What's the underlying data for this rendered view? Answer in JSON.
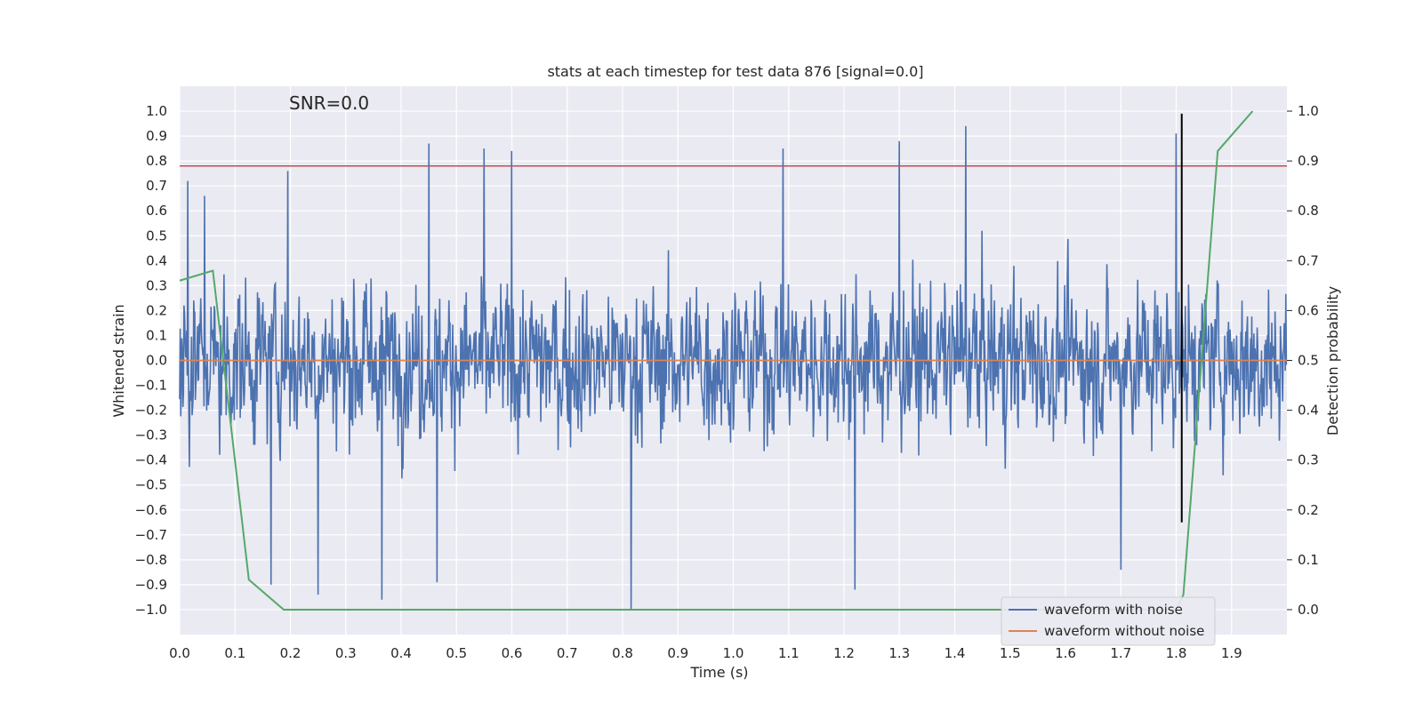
{
  "chart_data": {
    "type": "line",
    "title": "stats at each timestep for test data 876 [signal=0.0]",
    "xlabel": "Time (s)",
    "ylabel": "Whitened strain",
    "y2label": "Detection probability",
    "annotation": "SNR=0.0",
    "xlim": [
      0.0,
      2.0
    ],
    "ylim": [
      -1.1,
      1.1
    ],
    "y2lim": [
      -0.05,
      1.05
    ],
    "grid": true,
    "x_ticks": [
      "0.0",
      "0.1",
      "0.2",
      "0.3",
      "0.4",
      "0.5",
      "0.6",
      "0.7",
      "0.8",
      "0.9",
      "1.0",
      "1.1",
      "1.2",
      "1.3",
      "1.4",
      "1.5",
      "1.6",
      "1.7",
      "1.8",
      "1.9"
    ],
    "y_ticks": [
      "1.0",
      "0.9",
      "0.8",
      "0.7",
      "0.6",
      "0.5",
      "0.4",
      "0.3",
      "0.2",
      "0.1",
      "0.0",
      "−0.1",
      "−0.2",
      "−0.3",
      "−0.4",
      "−0.5",
      "−0.6",
      "−0.7",
      "−0.8",
      "−0.9",
      "−1.0"
    ],
    "y2_ticks": [
      "1.0",
      "0.9",
      "0.8",
      "0.7",
      "0.6",
      "0.5",
      "0.4",
      "0.3",
      "0.2",
      "0.1",
      "0.0"
    ],
    "series": [
      {
        "name": "waveform with noise",
        "color": "#4c72b0",
        "samples": 2048,
        "amplitude_range": [
          -1.0,
          0.94
        ],
        "notable_peaks": [
          [
            0.015,
            0.72
          ],
          [
            0.045,
            0.66
          ],
          [
            0.195,
            0.76
          ],
          [
            0.45,
            0.87
          ],
          [
            0.55,
            0.85
          ],
          [
            0.6,
            0.84
          ],
          [
            1.09,
            0.85
          ],
          [
            1.3,
            0.88
          ],
          [
            1.42,
            0.94
          ],
          [
            1.8,
            0.91
          ]
        ],
        "notable_troughs": [
          [
            0.165,
            -0.9
          ],
          [
            0.25,
            -0.94
          ],
          [
            0.365,
            -0.96
          ],
          [
            0.465,
            -0.89
          ],
          [
            0.815,
            -1.0
          ],
          [
            1.22,
            -0.92
          ],
          [
            1.7,
            -0.84
          ]
        ]
      },
      {
        "name": "waveform without noise",
        "color": "#dd8452",
        "values": "constant 0.0 over full time range"
      },
      {
        "name": "detection probability",
        "color": "#55a868",
        "axis": "right",
        "x": [
          0.0,
          0.06,
          0.125,
          0.188,
          1.8,
          1.813,
          1.875,
          1.938
        ],
        "values": [
          0.66,
          0.68,
          0.06,
          0.0,
          0.0,
          0.03,
          0.92,
          1.0
        ]
      }
    ],
    "threshold_line": {
      "y": 0.78,
      "color": "#c44e52"
    },
    "marker_line": {
      "x": 1.81,
      "y_range": [
        -0.65,
        0.99
      ],
      "color": "#000000"
    },
    "legend": {
      "position": "lower-right",
      "entries": [
        {
          "label": "waveform with noise",
          "color": "#4c72b0"
        },
        {
          "label": "waveform without noise",
          "color": "#dd8452"
        }
      ]
    },
    "colors": {
      "background": "#eaeaf2",
      "grid": "#ffffff",
      "text": "#262626"
    }
  }
}
